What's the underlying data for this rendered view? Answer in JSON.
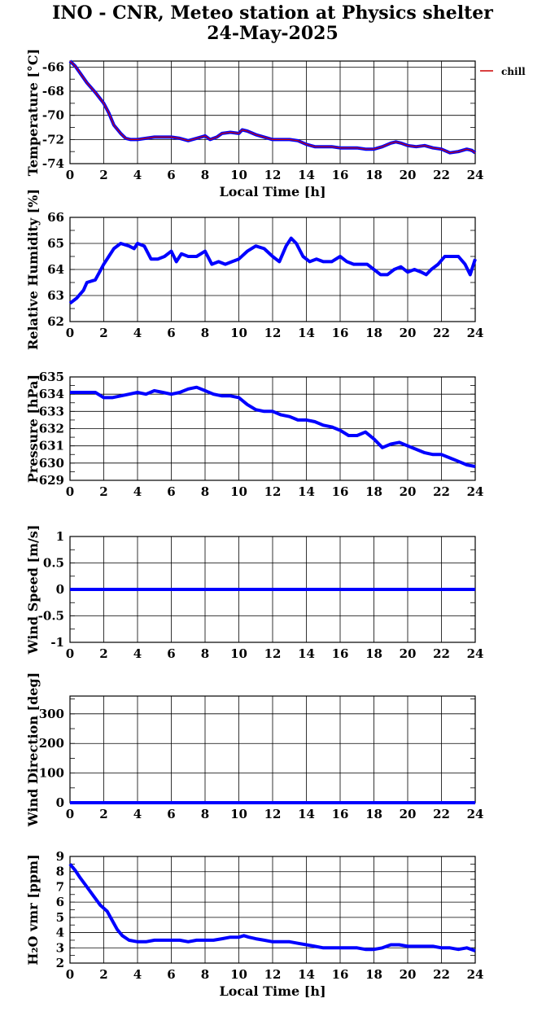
{
  "title": {
    "line1": "INO - CNR, Meteo station at Physics shelter",
    "line2": "24-May-2025"
  },
  "legend": {
    "label": "chill",
    "color": "#cc0000"
  },
  "colors": {
    "series": "#0000ff",
    "grid": "#000000"
  },
  "chart_data": [
    {
      "type": "line",
      "ylabel": "Temperature [°C]",
      "xlabel": "Local Time [h]",
      "xlim": [
        0,
        24
      ],
      "ylim": [
        -74,
        -65.5
      ],
      "yticks": [
        -74,
        -72,
        -70,
        -68,
        -66
      ],
      "xticks": [
        0,
        2,
        4,
        6,
        8,
        10,
        12,
        14,
        16,
        18,
        20,
        22,
        24
      ],
      "grid": true,
      "series": [
        {
          "name": "",
          "color": "#0000ff",
          "x": [
            0,
            0.3,
            0.6,
            1.0,
            1.5,
            2.0,
            2.3,
            2.6,
            3.0,
            3.3,
            3.6,
            4.0,
            4.5,
            5.0,
            5.5,
            6.0,
            6.5,
            7.0,
            7.5,
            8.0,
            8.3,
            8.7,
            9.0,
            9.5,
            10.0,
            10.2,
            10.5,
            11.0,
            11.5,
            12.0,
            12.5,
            13.0,
            13.5,
            14.0,
            14.5,
            15.0,
            15.5,
            16.0,
            16.5,
            17.0,
            17.5,
            18.0,
            18.5,
            19.0,
            19.3,
            19.6,
            20.0,
            20.5,
            21.0,
            21.5,
            22.0,
            22.5,
            23.0,
            23.5,
            23.8,
            24.0
          ],
          "y": [
            -65.5,
            -65.9,
            -66.5,
            -67.3,
            -68.1,
            -69.0,
            -69.8,
            -70.8,
            -71.5,
            -71.9,
            -72.0,
            -72.0,
            -71.9,
            -71.8,
            -71.8,
            -71.8,
            -71.9,
            -72.1,
            -71.9,
            -71.7,
            -72.0,
            -71.8,
            -71.5,
            -71.4,
            -71.5,
            -71.2,
            -71.3,
            -71.6,
            -71.8,
            -72.0,
            -72.0,
            -72.0,
            -72.1,
            -72.4,
            -72.6,
            -72.6,
            -72.6,
            -72.7,
            -72.7,
            -72.7,
            -72.8,
            -72.8,
            -72.6,
            -72.3,
            -72.2,
            -72.3,
            -72.5,
            -72.6,
            -72.5,
            -72.7,
            -72.8,
            -73.1,
            -73.0,
            -72.8,
            -72.9,
            -73.1
          ]
        },
        {
          "name": "chill",
          "color": "#cc0000",
          "x": [
            0,
            0.3,
            0.6,
            1.0,
            1.5,
            2.0,
            2.3,
            2.6,
            3.0,
            3.3,
            3.6,
            4.0,
            4.5,
            5.0,
            5.5,
            6.0,
            6.5,
            7.0,
            7.5,
            8.0,
            8.3,
            8.7,
            9.0,
            9.5,
            10.0,
            10.2,
            10.5,
            11.0,
            11.5,
            12.0,
            12.5,
            13.0,
            13.5,
            14.0,
            14.5,
            15.0,
            15.5,
            16.0,
            16.5,
            17.0,
            17.5,
            18.0,
            18.5,
            19.0,
            19.3,
            19.6,
            20.0,
            20.5,
            21.0,
            21.5,
            22.0,
            22.5,
            23.0,
            23.5,
            23.8,
            24.0
          ],
          "y": [
            -65.5,
            -65.9,
            -66.5,
            -67.3,
            -68.1,
            -69.0,
            -69.8,
            -70.8,
            -71.5,
            -71.9,
            -72.0,
            -72.0,
            -71.9,
            -71.8,
            -71.8,
            -71.8,
            -71.9,
            -72.1,
            -71.9,
            -71.7,
            -72.0,
            -71.8,
            -71.5,
            -71.4,
            -71.5,
            -71.2,
            -71.3,
            -71.6,
            -71.8,
            -72.0,
            -72.0,
            -72.0,
            -72.1,
            -72.4,
            -72.6,
            -72.6,
            -72.6,
            -72.7,
            -72.7,
            -72.7,
            -72.8,
            -72.8,
            -72.6,
            -72.3,
            -72.2,
            -72.3,
            -72.5,
            -72.6,
            -72.5,
            -72.7,
            -72.8,
            -73.1,
            -73.0,
            -72.8,
            -72.9,
            -73.1
          ]
        }
      ]
    },
    {
      "type": "line",
      "ylabel": "Relative Humidity [%]",
      "xlabel": "",
      "xlim": [
        0,
        24
      ],
      "ylim": [
        62,
        66
      ],
      "yticks": [
        62,
        63,
        64,
        65,
        66
      ],
      "xticks": [
        0,
        2,
        4,
        6,
        8,
        10,
        12,
        14,
        16,
        18,
        20,
        22,
        24
      ],
      "grid": true,
      "series": [
        {
          "name": "",
          "color": "#0000ff",
          "x": [
            0,
            0.4,
            0.8,
            1.0,
            1.5,
            2.0,
            2.3,
            2.6,
            3.0,
            3.5,
            3.8,
            4.0,
            4.4,
            4.8,
            5.2,
            5.6,
            6.0,
            6.3,
            6.6,
            7.0,
            7.5,
            8.0,
            8.4,
            8.8,
            9.2,
            9.6,
            10.0,
            10.5,
            11.0,
            11.5,
            12.0,
            12.4,
            12.8,
            13.1,
            13.4,
            13.8,
            14.2,
            14.6,
            15.0,
            15.5,
            16.0,
            16.4,
            16.8,
            17.2,
            17.6,
            18.0,
            18.4,
            18.8,
            19.2,
            19.6,
            20.0,
            20.4,
            20.8,
            21.1,
            21.4,
            21.8,
            22.2,
            22.6,
            23.0,
            23.4,
            23.7,
            24.0
          ],
          "y": [
            62.7,
            62.9,
            63.2,
            63.5,
            63.6,
            64.2,
            64.5,
            64.8,
            65.0,
            64.9,
            64.8,
            65.0,
            64.9,
            64.4,
            64.4,
            64.5,
            64.7,
            64.3,
            64.6,
            64.5,
            64.5,
            64.7,
            64.2,
            64.3,
            64.2,
            64.3,
            64.4,
            64.7,
            64.9,
            64.8,
            64.5,
            64.3,
            64.9,
            65.2,
            65.0,
            64.5,
            64.3,
            64.4,
            64.3,
            64.3,
            64.5,
            64.3,
            64.2,
            64.2,
            64.2,
            64.0,
            63.8,
            63.8,
            64.0,
            64.1,
            63.9,
            64.0,
            63.9,
            63.8,
            64.0,
            64.2,
            64.5,
            64.5,
            64.5,
            64.2,
            63.8,
            64.4
          ]
        }
      ]
    },
    {
      "type": "line",
      "ylabel": "Pressure [hPa]",
      "xlabel": "",
      "xlim": [
        0,
        24
      ],
      "ylim": [
        629,
        635
      ],
      "yticks": [
        629,
        630,
        631,
        632,
        633,
        634,
        635
      ],
      "xticks": [
        0,
        2,
        4,
        6,
        8,
        10,
        12,
        14,
        16,
        18,
        20,
        22,
        24
      ],
      "grid": true,
      "series": [
        {
          "name": "",
          "color": "#0000ff",
          "x": [
            0,
            0.5,
            1.0,
            1.5,
            2.0,
            2.5,
            3.0,
            3.5,
            4.0,
            4.5,
            5.0,
            5.5,
            6.0,
            6.5,
            7.0,
            7.5,
            8.0,
            8.5,
            9.0,
            9.5,
            10.0,
            10.5,
            11.0,
            11.5,
            12.0,
            12.5,
            13.0,
            13.5,
            14.0,
            14.5,
            15.0,
            15.5,
            16.0,
            16.5,
            17.0,
            17.5,
            18.0,
            18.5,
            19.0,
            19.5,
            20.0,
            20.5,
            21.0,
            21.5,
            22.0,
            22.5,
            23.0,
            23.5,
            24.0
          ],
          "y": [
            634.1,
            634.1,
            634.1,
            634.1,
            633.8,
            633.8,
            633.9,
            634.0,
            634.1,
            634.0,
            634.2,
            634.1,
            634.0,
            634.1,
            634.3,
            634.4,
            634.2,
            634.0,
            633.9,
            633.9,
            633.8,
            633.4,
            633.1,
            633.0,
            633.0,
            632.8,
            632.7,
            632.5,
            632.5,
            632.4,
            632.2,
            632.1,
            631.9,
            631.6,
            631.6,
            631.8,
            631.4,
            630.9,
            631.1,
            631.2,
            631.0,
            630.8,
            630.6,
            630.5,
            630.5,
            630.3,
            630.1,
            629.9,
            629.8
          ]
        }
      ]
    },
    {
      "type": "line",
      "ylabel": "Wind Speed [m/s]",
      "xlabel": "",
      "xlim": [
        0,
        24
      ],
      "ylim": [
        -1,
        1
      ],
      "yticks": [
        -1,
        -0.5,
        0,
        0.5,
        1
      ],
      "xticks": [
        0,
        2,
        4,
        6,
        8,
        10,
        12,
        14,
        16,
        18,
        20,
        22,
        24
      ],
      "grid": true,
      "series": [
        {
          "name": "",
          "color": "#0000ff",
          "x": [
            0,
            24
          ],
          "y": [
            0,
            0
          ]
        }
      ]
    },
    {
      "type": "line",
      "ylabel": "Wind Direction [deg]",
      "xlabel": "",
      "xlim": [
        0,
        24
      ],
      "ylim": [
        0,
        360
      ],
      "yticks": [
        0,
        100,
        200,
        300
      ],
      "xticks": [
        0,
        2,
        4,
        6,
        8,
        10,
        12,
        14,
        16,
        18,
        20,
        22,
        24
      ],
      "grid": true,
      "series": [
        {
          "name": "",
          "color": "#0000ff",
          "x": [
            0,
            24
          ],
          "y": [
            0,
            0
          ]
        }
      ]
    },
    {
      "type": "line",
      "ylabel": "H₂O vmr [ppm]",
      "xlabel": "Local Time [h]",
      "xlim": [
        0,
        24
      ],
      "ylim": [
        2,
        9
      ],
      "yticks": [
        2,
        3,
        4,
        5,
        6,
        7,
        8,
        9
      ],
      "xticks": [
        0,
        2,
        4,
        6,
        8,
        10,
        12,
        14,
        16,
        18,
        20,
        22,
        24
      ],
      "grid": true,
      "series": [
        {
          "name": "",
          "color": "#0000ff",
          "x": [
            0,
            0.3,
            0.6,
            1.0,
            1.4,
            1.8,
            2.2,
            2.5,
            2.8,
            3.1,
            3.5,
            4.0,
            4.5,
            5.0,
            5.5,
            6.0,
            6.5,
            7.0,
            7.5,
            8.0,
            8.5,
            9.0,
            9.5,
            10.0,
            10.3,
            10.6,
            11.0,
            11.5,
            12.0,
            12.5,
            13.0,
            13.5,
            14.0,
            14.5,
            15.0,
            15.5,
            16.0,
            16.5,
            17.0,
            17.5,
            18.0,
            18.5,
            19.0,
            19.5,
            20.0,
            20.5,
            21.0,
            21.5,
            22.0,
            22.5,
            23.0,
            23.5,
            24.0
          ],
          "y": [
            8.5,
            8.1,
            7.6,
            7.0,
            6.4,
            5.8,
            5.4,
            4.8,
            4.2,
            3.8,
            3.5,
            3.4,
            3.4,
            3.5,
            3.5,
            3.5,
            3.5,
            3.4,
            3.5,
            3.5,
            3.5,
            3.6,
            3.7,
            3.7,
            3.8,
            3.7,
            3.6,
            3.5,
            3.4,
            3.4,
            3.4,
            3.3,
            3.2,
            3.1,
            3.0,
            3.0,
            3.0,
            3.0,
            3.0,
            2.9,
            2.9,
            3.0,
            3.2,
            3.2,
            3.1,
            3.1,
            3.1,
            3.1,
            3.0,
            3.0,
            2.9,
            3.0,
            2.8
          ]
        }
      ]
    }
  ]
}
